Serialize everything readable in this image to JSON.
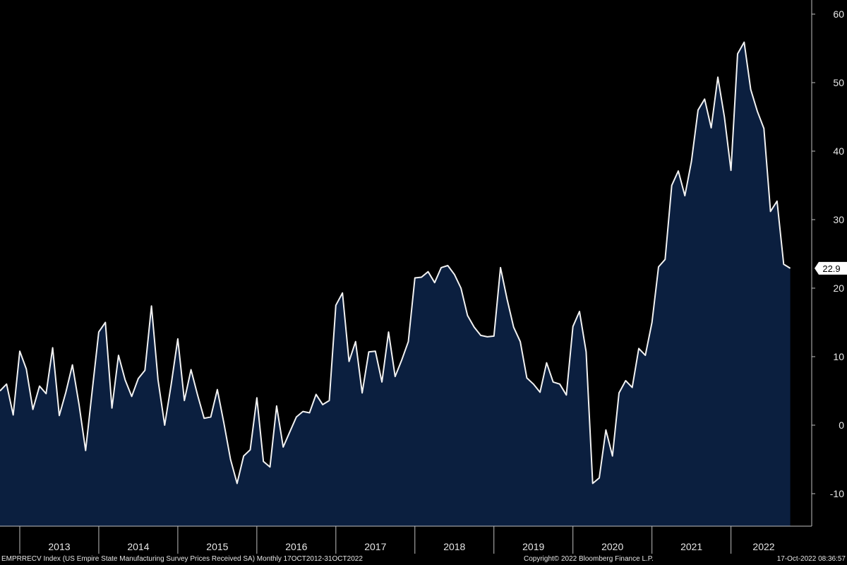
{
  "chart_data": {
    "type": "area",
    "title": "",
    "xlabel": "",
    "ylabel": "",
    "ylim": [
      -15,
      62
    ],
    "y_ticks": [
      -10,
      0,
      10,
      20,
      30,
      40,
      50,
      60
    ],
    "x_labels": [
      "2013",
      "2014",
      "2015",
      "2016",
      "2017",
      "2018",
      "2019",
      "2020",
      "2021",
      "2022"
    ],
    "last_value_label": "22.9",
    "grid": false,
    "legend": "none",
    "series": [
      {
        "x_start": "2012-10",
        "frequency": "monthly",
        "values": [
          5.0,
          6.0,
          1.5,
          10.8,
          8.2,
          2.3,
          5.7,
          4.6,
          11.3,
          1.4,
          4.8,
          8.8,
          3.0,
          -3.7,
          5.0,
          13.6,
          15.0,
          2.5,
          10.2,
          6.6,
          4.2,
          6.8,
          8.0,
          17.4,
          6.6,
          0.0,
          6.0,
          12.6,
          3.6,
          8.1,
          4.4,
          1.0,
          1.2,
          5.2,
          0.3,
          -5.0,
          -8.5,
          -4.5,
          -3.6,
          4.0,
          -5.3,
          -6.1,
          2.8,
          -3.2,
          -1.0,
          1.2,
          2.0,
          1.8,
          4.5,
          3.0,
          3.6,
          17.5,
          19.3,
          9.3,
          12.2,
          4.7,
          10.7,
          10.8,
          6.3,
          13.6,
          7.1,
          9.5,
          12.2,
          21.5,
          21.6,
          22.4,
          20.8,
          23.0,
          23.3,
          22.0,
          20.0,
          16.0,
          14.3,
          13.1,
          12.9,
          13.0,
          23.0,
          18.4,
          14.3,
          12.2,
          6.9,
          6.0,
          4.8,
          9.1,
          6.3,
          6.0,
          4.4,
          14.4,
          16.6,
          10.7,
          -8.5,
          -7.7,
          -0.7,
          -4.5,
          4.7,
          6.5,
          5.5,
          11.2,
          10.2,
          15.0,
          23.1,
          24.2,
          35.0,
          37.1,
          33.5,
          38.5,
          46.0,
          47.6,
          43.4,
          50.8,
          45.0,
          37.2,
          54.2,
          55.9,
          49.0,
          45.8,
          43.3,
          31.2,
          32.7,
          23.5,
          22.9
        ]
      }
    ]
  },
  "footer": {
    "source": "EMPRRECV Index (US Empire State Manufacturing Survey Prices Received SA)  Monthly 17OCT2012-31OCT2022",
    "copyright": "Copyright© 2022 Bloomberg Finance L.P.",
    "timestamp": "17-Oct-2022 08:36:57"
  },
  "colors": {
    "background": "#000000",
    "area_fill": "#0b1f3f",
    "line": "#f2f2f2",
    "axis": "#bfbfbf",
    "text": "#e6e6e6",
    "last_value_box": "#ffffff",
    "last_value_text": "#000000"
  }
}
